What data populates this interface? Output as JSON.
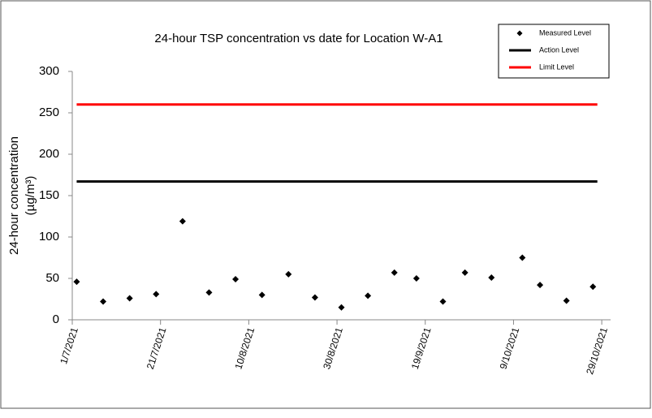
{
  "chart_data": {
    "type": "scatter",
    "title": "24-hour TSP concentration vs date for Location W-A1",
    "y_label": [
      "24-hour concentration",
      "(µg/m³)"
    ],
    "x": [
      "2/7/2021",
      "8/7/2021",
      "14/7/2021",
      "20/7/2021",
      "26/7/2021",
      "1/8/2021",
      "7/8/2021",
      "13/8/2021",
      "19/8/2021",
      "25/8/2021",
      "31/8/2021",
      "6/9/2021",
      "12/9/2021",
      "17/9/2021",
      "23/9/2021",
      "28/9/2021",
      "4/10/2021",
      "11/10/2021",
      "15/10/2021",
      "21/10/2021",
      "27/10/2021"
    ],
    "series": [
      {
        "name": "Measured Level",
        "color": "#000000",
        "style": "marker",
        "values": [
          46,
          22,
          26,
          31,
          119,
          33,
          49,
          30,
          55,
          27,
          15,
          29,
          57,
          50,
          22,
          57,
          51,
          75,
          42,
          23,
          40
        ]
      },
      {
        "name": "Action Level",
        "color": "#000000",
        "style": "line",
        "x": [
          "2/7/2021",
          "28/10/2021"
        ],
        "values": [
          167,
          167
        ]
      },
      {
        "name": "Limit Level",
        "color": "#ff0000",
        "style": "line",
        "x": [
          "2/7/2021",
          "28/10/2021"
        ],
        "values": [
          260,
          260
        ]
      }
    ],
    "xlim": [
      "1/7/2021",
      "31/10/2021"
    ],
    "xticks": [
      "1/7/2021",
      "21/7/2021",
      "10/8/2021",
      "30/8/2021",
      "19/9/2021",
      "9/10/2021",
      "29/10/2021"
    ],
    "ylim": [
      0,
      300
    ],
    "yticks": [
      0,
      50,
      100,
      150,
      200,
      250,
      300
    ],
    "grid": false,
    "legend": "top-right"
  }
}
